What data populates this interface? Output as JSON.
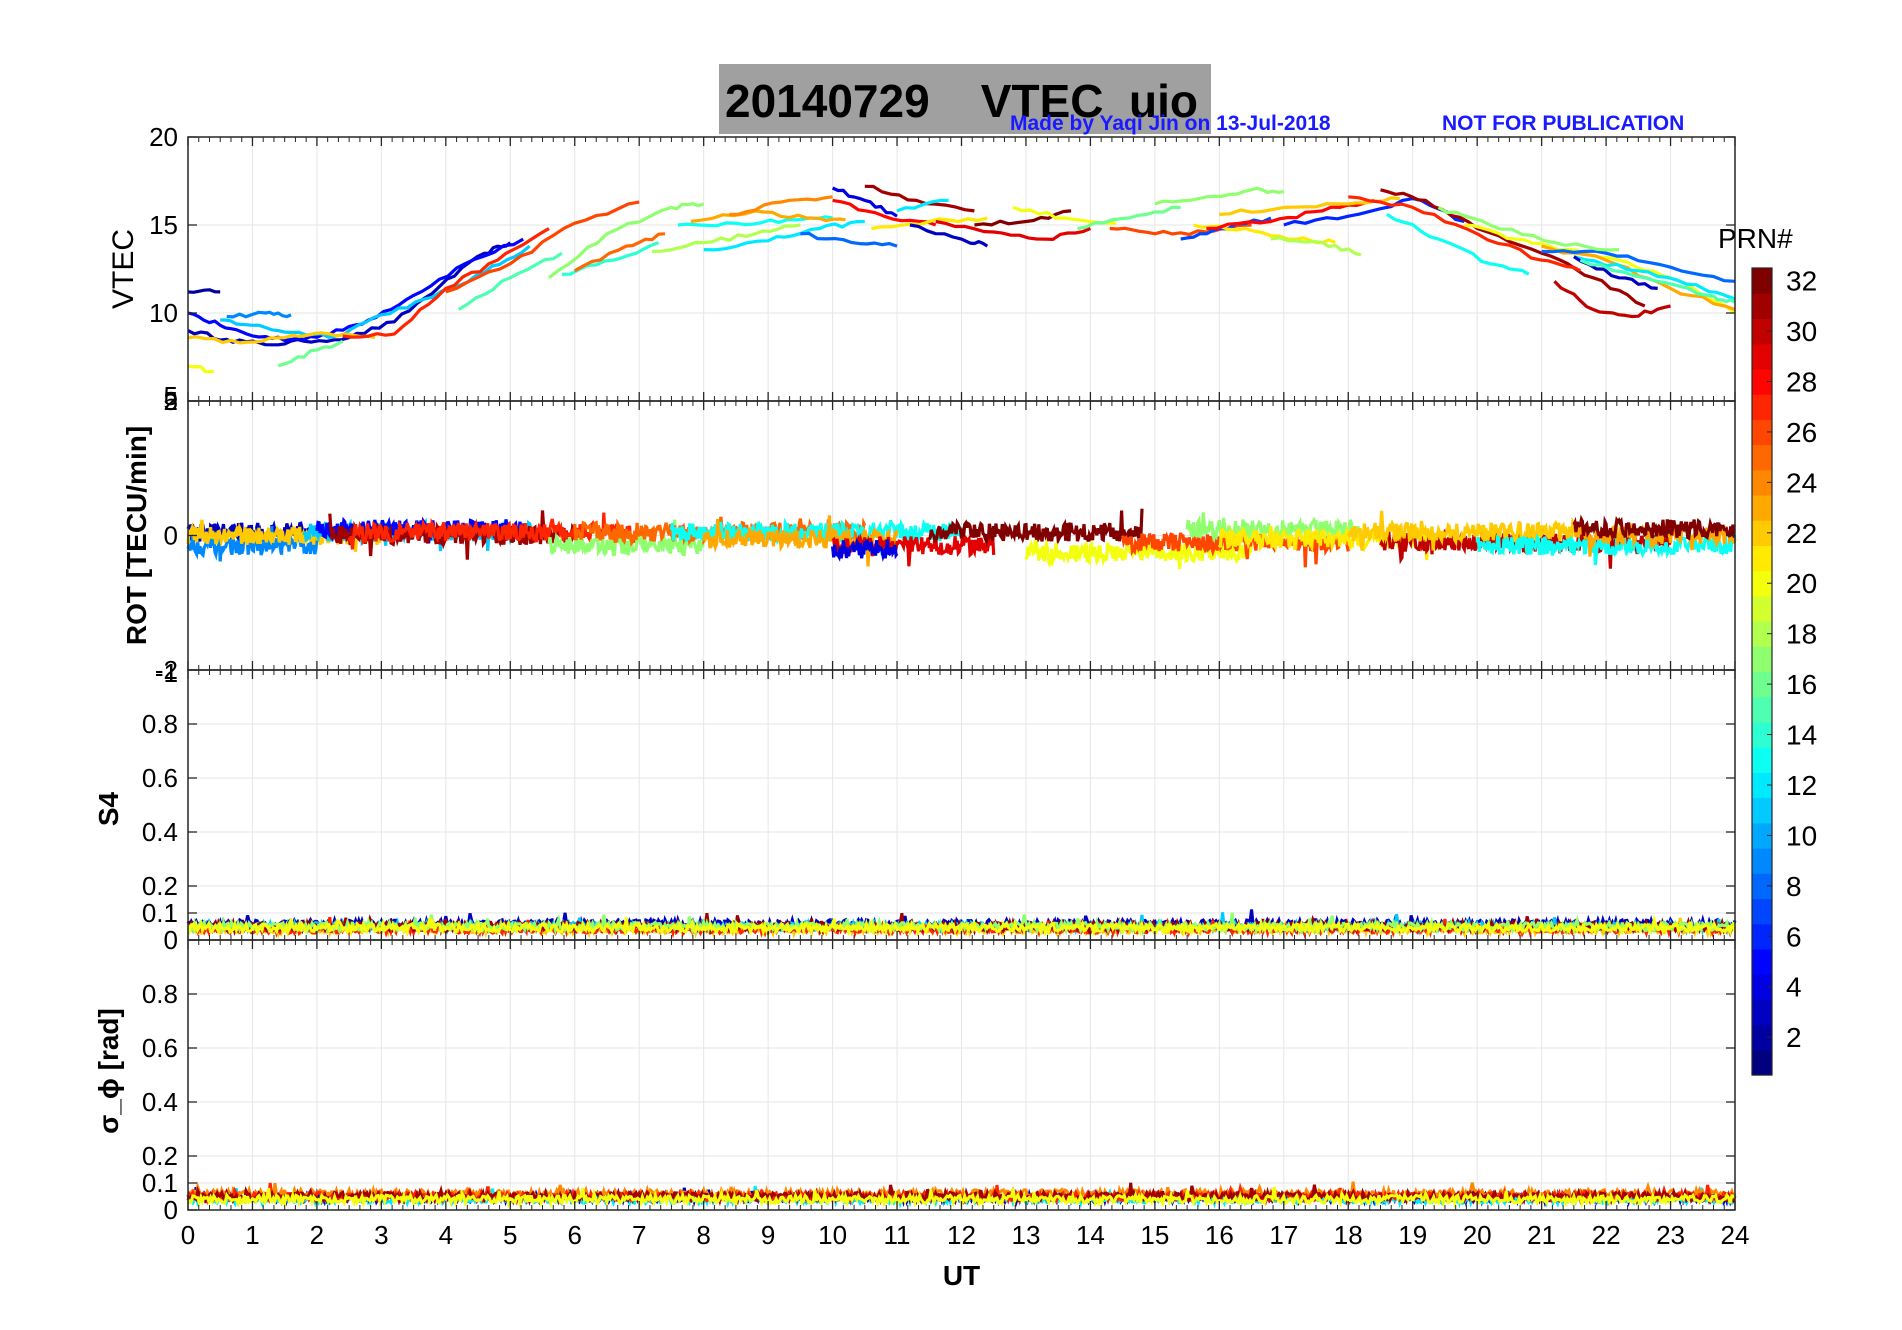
{
  "header": {
    "title": "20140729    VTEC  uio",
    "credit": "Made by Yaqi Jin on 13-Jul-2018",
    "notice": "NOT FOR PUBLICATION"
  },
  "colors": {
    "title_box": "#a0a0a0",
    "credit": "#1a1aff",
    "grid": "#e6e6e6"
  },
  "chart_data": [
    {
      "type": "line",
      "panel": "vtec",
      "ylabel": "VTEC",
      "xlim": [
        0,
        24
      ],
      "ylim": [
        5,
        20
      ],
      "yticks": [
        10,
        15,
        20
      ],
      "ytick_labels": [
        "10",
        "15",
        "20"
      ],
      "bottom_tick_label": "5",
      "grid": true,
      "series": [
        {
          "prn": 3,
          "x": [
            0,
            0.6,
            1.2,
            1.8,
            2.5,
            3.2,
            3.9,
            4.6,
            5.0
          ],
          "y": [
            9.0,
            8.5,
            8.2,
            8.4,
            8.6,
            9.5,
            11.5,
            13.4,
            14.0
          ]
        },
        {
          "prn": 5,
          "x": [
            0,
            0.5,
            1.0,
            1.6,
            2.2,
            2.8,
            3.5,
            4.3,
            5.2
          ],
          "y": [
            10.0,
            9.3,
            8.7,
            8.5,
            8.8,
            9.6,
            11.0,
            12.8,
            14.2
          ]
        },
        {
          "prn": 2,
          "x": [
            0,
            0.5
          ],
          "y": [
            11.2,
            11.2
          ]
        },
        {
          "prn": 11,
          "x": [
            0.5,
            1.0,
            1.6,
            2.3,
            3.0,
            3.8,
            4.6,
            5.3
          ],
          "y": [
            9.6,
            9.3,
            8.9,
            8.7,
            9.9,
            10.9,
            12.3,
            13.8
          ]
        },
        {
          "prn": 9,
          "x": [
            0.6,
            1.2,
            1.6
          ],
          "y": [
            9.8,
            10.0,
            9.9
          ]
        },
        {
          "prn": 22,
          "x": [
            0,
            0.8,
            1.5,
            2.2,
            2.9
          ],
          "y": [
            8.6,
            8.3,
            8.6,
            8.8,
            8.6
          ]
        },
        {
          "prn": 20,
          "x": [
            0,
            0.4
          ],
          "y": [
            7.0,
            6.7
          ]
        },
        {
          "prn": 16,
          "x": [
            1.4,
            2.0,
            2.4
          ],
          "y": [
            7.0,
            7.9,
            8.4
          ]
        },
        {
          "prn": 27,
          "x": [
            2.4,
            3.2,
            4.0,
            4.8,
            5.6
          ],
          "y": [
            8.7,
            8.8,
            11.4,
            13.0,
            14.8
          ]
        },
        {
          "prn": 26,
          "x": [
            4.0,
            5.0,
            6.0,
            7.0
          ],
          "y": [
            11.2,
            12.8,
            15.1,
            16.3
          ]
        },
        {
          "prn": 15,
          "x": [
            4.2,
            5.0,
            5.8
          ],
          "y": [
            10.2,
            12.0,
            13.4
          ]
        },
        {
          "prn": 17,
          "x": [
            5.6,
            6.5,
            7.5,
            8.0
          ],
          "y": [
            12.0,
            14.5,
            16.0,
            16.2
          ]
        },
        {
          "prn": 14,
          "x": [
            5.8,
            6.6,
            7.3
          ],
          "y": [
            12.2,
            13.0,
            14.0
          ]
        },
        {
          "prn": 25,
          "x": [
            6.0,
            6.8,
            7.4
          ],
          "y": [
            12.4,
            13.8,
            14.5
          ]
        },
        {
          "prn": 18,
          "x": [
            7.2,
            8.0,
            8.8,
            9.5
          ],
          "y": [
            13.5,
            14.0,
            14.5,
            15.0
          ]
        },
        {
          "prn": 13,
          "x": [
            7.6,
            8.5,
            9.3,
            10.0
          ],
          "y": [
            15.0,
            15.1,
            15.3,
            15.4
          ]
        },
        {
          "prn": 23,
          "x": [
            7.8,
            8.8,
            9.6,
            10.2
          ],
          "y": [
            15.2,
            15.8,
            15.4,
            15.3
          ]
        },
        {
          "prn": 24,
          "x": [
            8.4,
            9.2,
            10.0
          ],
          "y": [
            15.6,
            16.3,
            16.6
          ]
        },
        {
          "prn": 12,
          "x": [
            8.0,
            9.0,
            9.8,
            10.5
          ],
          "y": [
            13.6,
            14.1,
            14.8,
            15.2
          ]
        },
        {
          "prn": 4,
          "x": [
            10.0,
            10.5,
            11.0
          ],
          "y": [
            17.1,
            16.4,
            15.5
          ]
        },
        {
          "prn": 8,
          "x": [
            9.5,
            10.3,
            11.0
          ],
          "y": [
            14.5,
            14.0,
            13.8
          ]
        },
        {
          "prn": 28,
          "x": [
            10.0,
            10.8,
            11.6
          ],
          "y": [
            16.4,
            15.5,
            15.0
          ]
        },
        {
          "prn": 31,
          "x": [
            10.5,
            11.3,
            12.2
          ],
          "y": [
            17.2,
            16.4,
            15.8
          ]
        },
        {
          "prn": 21,
          "x": [
            10.6,
            11.5,
            12.4
          ],
          "y": [
            14.8,
            15.2,
            15.4
          ]
        },
        {
          "prn": 12,
          "x": [
            11.0,
            11.8
          ],
          "y": [
            15.8,
            16.4
          ]
        },
        {
          "prn": 3,
          "x": [
            11.2,
            12.0,
            12.4
          ],
          "y": [
            15.0,
            14.2,
            13.8
          ]
        },
        {
          "prn": 29,
          "x": [
            11.6,
            12.5,
            13.3,
            14.0
          ],
          "y": [
            15.2,
            14.6,
            14.2,
            14.8
          ]
        },
        {
          "prn": 32,
          "x": [
            12.2,
            13.0,
            13.7
          ],
          "y": [
            15.0,
            15.2,
            15.8
          ]
        },
        {
          "prn": 20,
          "x": [
            12.8,
            13.6,
            14.4
          ],
          "y": [
            16.0,
            15.4,
            15.1
          ]
        },
        {
          "prn": 16,
          "x": [
            13.8,
            14.6,
            15.4
          ],
          "y": [
            14.8,
            15.4,
            16.0
          ]
        },
        {
          "prn": 26,
          "x": [
            14.3,
            15.0,
            15.8,
            16.5
          ],
          "y": [
            14.8,
            14.5,
            14.6,
            15.0
          ]
        },
        {
          "prn": 17,
          "x": [
            15.0,
            15.8,
            16.5,
            17.0
          ],
          "y": [
            16.2,
            16.6,
            17.0,
            16.9
          ]
        },
        {
          "prn": 7,
          "x": [
            15.4,
            16.0,
            16.8
          ],
          "y": [
            14.2,
            14.8,
            15.4
          ]
        },
        {
          "prn": 21,
          "x": [
            15.6,
            16.4,
            17.2,
            17.8
          ],
          "y": [
            15.0,
            14.8,
            14.2,
            14.0
          ]
        },
        {
          "prn": 28,
          "x": [
            15.8,
            16.8,
            17.6,
            18.4
          ],
          "y": [
            14.8,
            15.2,
            15.8,
            16.4
          ]
        },
        {
          "prn": 18,
          "x": [
            16.8,
            17.6,
            18.2
          ],
          "y": [
            14.2,
            14.0,
            13.3
          ]
        },
        {
          "prn": 22,
          "x": [
            16.0,
            17.0,
            18.0,
            18.8
          ],
          "y": [
            15.6,
            16.0,
            16.2,
            16.5
          ]
        },
        {
          "prn": 6,
          "x": [
            17.0,
            18.0,
            19.0,
            19.8
          ],
          "y": [
            15.0,
            15.5,
            16.5,
            15.2
          ]
        },
        {
          "prn": 31,
          "x": [
            18.5,
            19.2,
            20.0,
            21.0,
            21.8,
            22.6
          ],
          "y": [
            17.0,
            16.4,
            14.8,
            13.4,
            12.0,
            10.4
          ]
        },
        {
          "prn": 27,
          "x": [
            18.0,
            19.0,
            20.0,
            21.0,
            21.6
          ],
          "y": [
            16.6,
            16.0,
            14.5,
            13.0,
            12.4
          ]
        },
        {
          "prn": 13,
          "x": [
            18.6,
            19.4,
            20.2,
            20.8
          ],
          "y": [
            15.6,
            14.2,
            12.8,
            12.2
          ]
        },
        {
          "prn": 20,
          "x": [
            19.8,
            20.6,
            21.4,
            22.2,
            23.0,
            24.0
          ],
          "y": [
            15.0,
            14.2,
            13.6,
            13.0,
            12.0,
            10.0
          ]
        },
        {
          "prn": 23,
          "x": [
            21.0,
            22.0,
            23.0,
            24.0
          ],
          "y": [
            13.8,
            13.0,
            11.4,
            10.2
          ]
        },
        {
          "prn": 8,
          "x": [
            21.0,
            22.0,
            23.0,
            24.0
          ],
          "y": [
            13.5,
            13.4,
            12.6,
            11.8
          ]
        },
        {
          "prn": 12,
          "x": [
            21.5,
            22.5,
            23.4,
            24.0
          ],
          "y": [
            13.2,
            12.4,
            11.6,
            10.8
          ]
        },
        {
          "prn": 30,
          "x": [
            21.2,
            21.8,
            22.4,
            23.0
          ],
          "y": [
            11.8,
            10.2,
            9.8,
            10.4
          ]
        },
        {
          "prn": 3,
          "x": [
            21.5,
            22.2,
            22.8
          ],
          "y": [
            13.2,
            12.0,
            11.4
          ]
        },
        {
          "prn": 15,
          "x": [
            21.6,
            22.6,
            23.6,
            24.0
          ],
          "y": [
            13.0,
            12.0,
            11.0,
            10.6
          ]
        },
        {
          "prn": 17,
          "x": [
            19.4,
            20.2,
            21.2,
            22.2
          ],
          "y": [
            16.0,
            15.0,
            14.0,
            13.6
          ]
        }
      ]
    },
    {
      "type": "line",
      "panel": "rot",
      "ylabel": "ROT [TECU/min]",
      "xlim": [
        0,
        24
      ],
      "ylim": [
        -2,
        2
      ],
      "yticks": [
        -2,
        0,
        2
      ],
      "ytick_labels": [
        "-2",
        "0",
        "2"
      ],
      "overlap_tick_labels": [
        "5",
        "-1"
      ],
      "grid": true,
      "series": [
        {
          "prn": 3,
          "x": [
            0,
            2.0
          ],
          "base": 0.05
        },
        {
          "prn": 9,
          "x": [
            0,
            2.0
          ],
          "base": -0.15
        },
        {
          "prn": 22,
          "x": [
            0,
            3.0
          ],
          "base": 0.0
        },
        {
          "prn": 11,
          "x": [
            1.8,
            5.4
          ],
          "base": 0.05
        },
        {
          "prn": 5,
          "x": [
            2.0,
            5.2
          ],
          "base": 0.1
        },
        {
          "prn": 31,
          "x": [
            2.2,
            6.0
          ],
          "base": 0.0
        },
        {
          "prn": 27,
          "x": [
            2.5,
            7.0
          ],
          "base": 0.05
        },
        {
          "prn": 17,
          "x": [
            5.6,
            8.0
          ],
          "base": -0.15
        },
        {
          "prn": 25,
          "x": [
            6.0,
            10.5
          ],
          "base": 0.05
        },
        {
          "prn": 13,
          "x": [
            7.5,
            12.0
          ],
          "base": 0.05
        },
        {
          "prn": 23,
          "x": [
            8.0,
            11.0
          ],
          "base": -0.05
        },
        {
          "prn": 29,
          "x": [
            10.0,
            12.5
          ],
          "base": -0.15
        },
        {
          "prn": 32,
          "x": [
            11.5,
            14.8
          ],
          "base": 0.05
        },
        {
          "prn": 4,
          "x": [
            10.0,
            11.0
          ],
          "base": -0.2
        },
        {
          "prn": 20,
          "x": [
            13.0,
            16.5
          ],
          "base": -0.25
        },
        {
          "prn": 26,
          "x": [
            14.5,
            18.0
          ],
          "base": -0.1
        },
        {
          "prn": 17,
          "x": [
            15.5,
            18.2
          ],
          "base": 0.1
        },
        {
          "prn": 21,
          "x": [
            16.0,
            19.5
          ],
          "base": -0.05
        },
        {
          "prn": 30,
          "x": [
            18.5,
            23.0
          ],
          "base": -0.1
        },
        {
          "prn": 22,
          "x": [
            18.0,
            21.5
          ],
          "base": 0.05
        },
        {
          "prn": 13,
          "x": [
            20.0,
            24.0
          ],
          "base": -0.15
        },
        {
          "prn": 23,
          "x": [
            21.5,
            24.0
          ],
          "base": 0.0
        },
        {
          "prn": 32,
          "x": [
            21.5,
            24.0
          ],
          "base": 0.1
        }
      ]
    },
    {
      "type": "line",
      "panel": "s4",
      "ylabel": "S4",
      "xlim": [
        0,
        24
      ],
      "ylim": [
        0,
        1
      ],
      "yticks": [
        0,
        0.1,
        0.2,
        0.4,
        0.6,
        0.8
      ],
      "ytick_labels": [
        "0",
        "0.1",
        "0.2",
        "0.4",
        "0.6",
        "0.8"
      ],
      "top_tick_label": "1",
      "grid": true,
      "series": [
        {
          "prn": 3,
          "level": 0.06
        },
        {
          "prn": 11,
          "level": 0.05
        },
        {
          "prn": 22,
          "level": 0.04
        },
        {
          "prn": 27,
          "level": 0.04
        },
        {
          "prn": 31,
          "level": 0.05
        },
        {
          "prn": 17,
          "level": 0.05
        },
        {
          "prn": 20,
          "level": 0.045
        }
      ]
    },
    {
      "type": "line",
      "panel": "sigma_phi",
      "ylabel": "σ_ϕ [rad]",
      "xlim": [
        0,
        24
      ],
      "ylim": [
        0,
        1
      ],
      "yticks": [
        0,
        0.1,
        0.2,
        0.4,
        0.6,
        0.8
      ],
      "ytick_labels": [
        "0",
        "0.1",
        "0.2",
        "0.4",
        "0.6",
        "0.8"
      ],
      "xticks": [
        0,
        1,
        2,
        3,
        4,
        5,
        6,
        7,
        8,
        9,
        10,
        11,
        12,
        13,
        14,
        15,
        16,
        17,
        18,
        19,
        20,
        21,
        22,
        23,
        24
      ],
      "xtick_labels": [
        "0",
        "1",
        "2",
        "3",
        "4",
        "5",
        "6",
        "7",
        "8",
        "9",
        "10",
        "11",
        "12",
        "13",
        "14",
        "15",
        "16",
        "17",
        "18",
        "19",
        "20",
        "21",
        "22",
        "23",
        "24"
      ],
      "xlabel": "UT",
      "grid": true,
      "series": [
        {
          "prn": 3,
          "level": 0.045
        },
        {
          "prn": 12,
          "level": 0.04
        },
        {
          "prn": 24,
          "level": 0.06
        },
        {
          "prn": 27,
          "level": 0.05
        },
        {
          "prn": 31,
          "level": 0.05
        },
        {
          "prn": 20,
          "level": 0.04
        }
      ]
    }
  ],
  "colorbar": {
    "label": "PRN#",
    "min": 1,
    "max": 32,
    "colormap": "jet",
    "tick_values": [
      2,
      4,
      6,
      8,
      10,
      12,
      14,
      16,
      18,
      20,
      22,
      24,
      26,
      28,
      30,
      32
    ],
    "tick_labels": [
      "2",
      "4",
      "6",
      "8",
      "10",
      "12",
      "14",
      "16",
      "18",
      "20",
      "22",
      "24",
      "26",
      "28",
      "30",
      "32"
    ]
  }
}
